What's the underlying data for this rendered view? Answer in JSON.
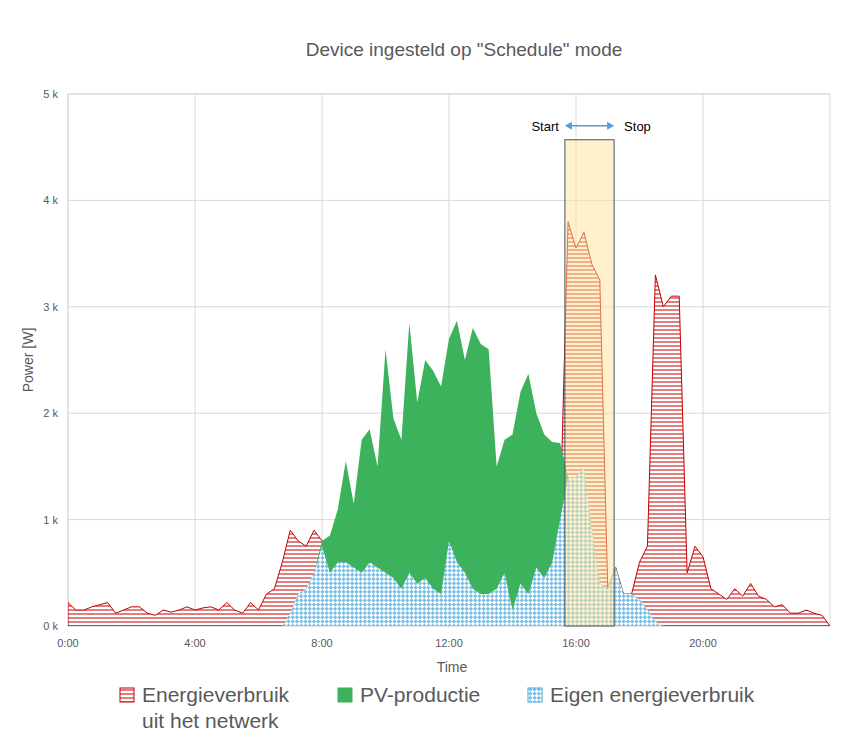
{
  "chart_data": {
    "type": "area",
    "title": "Device ingesteld op \"Schedule\" mode",
    "x_label": "Time",
    "y_label": "Power [W]",
    "x": [
      0,
      0.25,
      0.5,
      0.75,
      1,
      1.25,
      1.5,
      1.75,
      2,
      2.25,
      2.5,
      2.75,
      3,
      3.25,
      3.5,
      3.75,
      4,
      4.25,
      4.5,
      4.75,
      5,
      5.25,
      5.5,
      5.75,
      6,
      6.25,
      6.5,
      6.75,
      7,
      7.25,
      7.5,
      7.75,
      8,
      8.25,
      8.5,
      8.75,
      9,
      9.25,
      9.5,
      9.75,
      10,
      10.25,
      10.5,
      10.75,
      11,
      11.25,
      11.5,
      11.75,
      12,
      12.25,
      12.5,
      12.75,
      13,
      13.25,
      13.5,
      13.75,
      14,
      14.25,
      14.5,
      14.75,
      15,
      15.25,
      15.5,
      15.75,
      16,
      16.25,
      16.5,
      16.75,
      17,
      17.25,
      17.5,
      17.75,
      18,
      18.25,
      18.5,
      18.75,
      19,
      19.25,
      19.5,
      19.75,
      20,
      20.25,
      20.5,
      20.75,
      21,
      21.25,
      21.5,
      21.75,
      22,
      22.25,
      22.5,
      22.75,
      23,
      23.25,
      23.5,
      23.75,
      24
    ],
    "series": [
      {
        "name": "Energieverbruik\nuit het netwerk",
        "color": "#c00000",
        "values": [
          220,
          150,
          150,
          180,
          200,
          220,
          120,
          150,
          180,
          180,
          120,
          100,
          150,
          130,
          150,
          180,
          150,
          170,
          180,
          150,
          220,
          150,
          120,
          220,
          150,
          300,
          350,
          600,
          900,
          800,
          750,
          900,
          800,
          500,
          600,
          600,
          550,
          500,
          600,
          550,
          500,
          450,
          350,
          500,
          400,
          450,
          350,
          300,
          800,
          600,
          500,
          350,
          300,
          300,
          350,
          500,
          150,
          400,
          300,
          550,
          450,
          600,
          1000,
          3800,
          3550,
          3700,
          3400,
          3250,
          350,
          550,
          300,
          300,
          600,
          750,
          3300,
          3000,
          3100,
          3100,
          500,
          750,
          650,
          350,
          300,
          250,
          350,
          280,
          400,
          280,
          250,
          180,
          200,
          120,
          120,
          150,
          120,
          100,
          0
        ]
      },
      {
        "name": "PV-productie",
        "color": "#3cb25c",
        "values": [
          0,
          0,
          0,
          0,
          0,
          0,
          0,
          0,
          0,
          0,
          0,
          0,
          0,
          0,
          0,
          0,
          0,
          0,
          0,
          0,
          0,
          0,
          0,
          0,
          0,
          0,
          0,
          0,
          120,
          300,
          350,
          500,
          800,
          850,
          1100,
          1550,
          1150,
          1750,
          1850,
          1500,
          2600,
          1950,
          1750,
          2850,
          2100,
          2500,
          2400,
          2250,
          2700,
          2870,
          2500,
          2800,
          2650,
          2600,
          1500,
          1750,
          1800,
          2200,
          2370,
          2000,
          1800,
          1730,
          1720,
          1400,
          1400,
          1480,
          900,
          400,
          350,
          550,
          300,
          300,
          250,
          150,
          50,
          0,
          0,
          0,
          0,
          0,
          0,
          0,
          0,
          0,
          0,
          0,
          0,
          0,
          0,
          0,
          0,
          0,
          0,
          0,
          0,
          0,
          0
        ]
      },
      {
        "name": "Eigen energieverbruik",
        "color": "#4aa8dc",
        "values": [
          0,
          0,
          0,
          0,
          0,
          0,
          0,
          0,
          0,
          0,
          0,
          0,
          0,
          0,
          0,
          0,
          0,
          0,
          0,
          0,
          0,
          0,
          0,
          0,
          0,
          0,
          0,
          0,
          120,
          300,
          350,
          500,
          750,
          500,
          600,
          600,
          550,
          500,
          600,
          550,
          500,
          450,
          350,
          500,
          400,
          450,
          350,
          300,
          800,
          600,
          500,
          350,
          300,
          300,
          350,
          500,
          150,
          400,
          300,
          550,
          450,
          600,
          1000,
          1400,
          1400,
          1480,
          900,
          400,
          350,
          550,
          300,
          300,
          250,
          150,
          50,
          0,
          0,
          0,
          0,
          0,
          0,
          0,
          0,
          0,
          0,
          0,
          0,
          0,
          0,
          0,
          0,
          0,
          0,
          0,
          0,
          0,
          0
        ]
      }
    ],
    "xlim": [
      0,
      24
    ],
    "xticks": [
      {
        "value": 0,
        "label": "0:00"
      },
      {
        "value": 4,
        "label": "4:00"
      },
      {
        "value": 8,
        "label": "8:00"
      },
      {
        "value": 12,
        "label": "12:00"
      },
      {
        "value": 16,
        "label": "16:00"
      },
      {
        "value": 20,
        "label": "20:00"
      }
    ],
    "ylim": [
      0,
      5000
    ],
    "yticks": [
      {
        "value": 0,
        "label": "0 k"
      },
      {
        "value": 1000,
        "label": "1 k"
      },
      {
        "value": 2000,
        "label": "2 k"
      },
      {
        "value": 3000,
        "label": "3 k"
      },
      {
        "value": 4000,
        "label": "4 k"
      },
      {
        "value": 5000,
        "label": "5 k"
      }
    ],
    "annotation": {
      "start_label": "Start",
      "stop_label": "Stop",
      "x_start": 15.65,
      "x_end": 17.2,
      "y_top": 4570
    },
    "grid": true,
    "legend": "bottom"
  }
}
